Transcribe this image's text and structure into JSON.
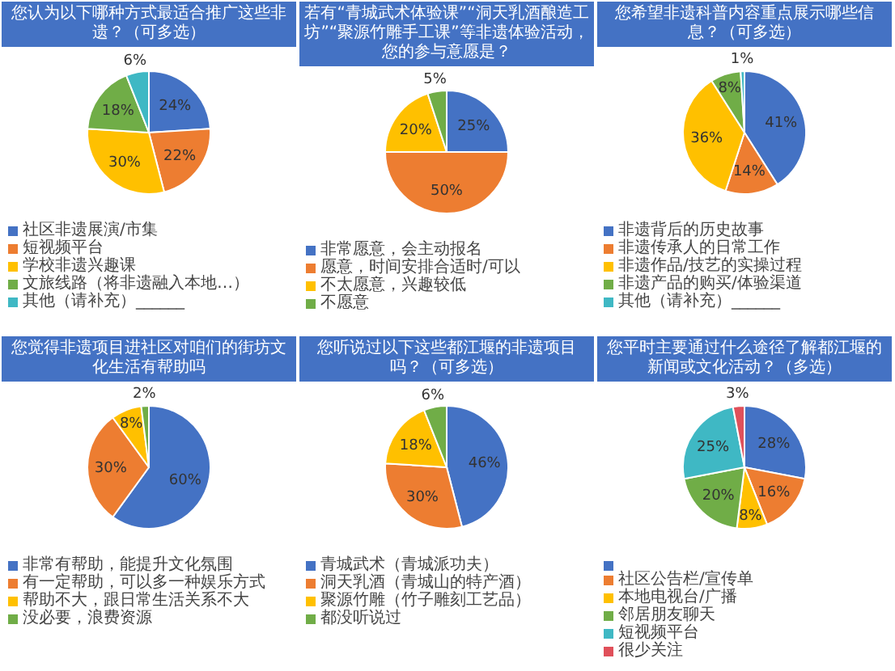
{
  "chart_data": [
    {
      "type": "pie",
      "title": "您认为以下哪种方式最适合推广这些非遗？（可多选）",
      "legend": "bottom",
      "categories": [
        "社区非遗展演/市集",
        "短视频平台",
        "学校非遗兴趣课",
        "文旅线路（将非遗融入本地…）",
        "其他（请补充）______"
      ],
      "values": [
        24,
        22,
        30,
        18,
        6
      ],
      "value_labels": [
        "24%",
        "22%",
        "30%",
        "18%",
        "6%"
      ],
      "colors": [
        "#4472c4",
        "#ed7d31",
        "#ffc000",
        "#70ad47",
        "#3fb8c4"
      ]
    },
    {
      "type": "pie",
      "title": "若有“青城武术体验课”“洞天乳酒酿造工坊”“聚源竹雕手工课”等非遗体验活动，您的参与意愿是？",
      "legend": "bottom",
      "categories": [
        "非常愿意，会主动报名",
        "愿意，时间安排合适时/可以",
        "不太愿意，兴趣较低",
        "不愿意"
      ],
      "values": [
        25,
        50,
        20,
        5
      ],
      "value_labels": [
        "25%",
        "50%",
        "20%",
        "5%"
      ],
      "colors": [
        "#4472c4",
        "#ed7d31",
        "#ffc000",
        "#70ad47"
      ]
    },
    {
      "type": "pie",
      "title": "您希望非遗科普内容重点展示哪些信息？（可多选）",
      "legend": "bottom",
      "categories": [
        "非遗背后的历史故事",
        "非遗传承人的日常工作",
        "非遗作品/技艺的实操过程",
        "非遗产品的购买/体验渠道",
        "其他（请补充）______"
      ],
      "values": [
        41,
        14,
        36,
        8,
        1
      ],
      "value_labels": [
        "41%",
        "14%",
        "36%",
        "8%",
        "1%"
      ],
      "colors": [
        "#4472c4",
        "#ed7d31",
        "#ffc000",
        "#70ad47",
        "#3fb8c4"
      ]
    },
    {
      "type": "pie",
      "title": "您觉得非遗项目进社区对咱们的街坊文化生活有帮助吗",
      "legend": "bottom",
      "categories": [
        "非常有帮助，能提升文化氛围",
        "有一定帮助，可以多一种娱乐方式",
        "帮助不大，跟日常生活关系不大",
        "没必要，浪费资源"
      ],
      "values": [
        60,
        30,
        8,
        2
      ],
      "value_labels": [
        "60%",
        "30%",
        "8%",
        "2%"
      ],
      "colors": [
        "#4472c4",
        "#ed7d31",
        "#ffc000",
        "#70ad47"
      ]
    },
    {
      "type": "pie",
      "title": "您听说过以下这些都江堰的非遗项目吗？（可多选）",
      "legend": "bottom",
      "categories": [
        "青城武术（青城派功夫）",
        "洞天乳酒（青城山的特产酒）",
        "聚源竹雕（竹子雕刻工艺品）",
        "都没听说过"
      ],
      "values": [
        46,
        30,
        18,
        6
      ],
      "value_labels": [
        "46%",
        "30%",
        "18%",
        "6%"
      ],
      "colors": [
        "#4472c4",
        "#ed7d31",
        "#ffc000",
        "#70ad47"
      ]
    },
    {
      "type": "pie",
      "title": "您平时主要通过什么途径了解都江堰的新闻或文化活动？（多选）",
      "legend": "bottom",
      "categories": [
        null,
        "社区公告栏/宣传单",
        "本地电视台/广播",
        "邻居朋友聊天",
        "短视频平台",
        "很少关注"
      ],
      "values": [
        28,
        16,
        8,
        20,
        25,
        3
      ],
      "value_labels": [
        "28%",
        "16%",
        "8%",
        "20%",
        "25%",
        "3%"
      ],
      "colors": [
        "#4472c4",
        "#ed7d31",
        "#ffc000",
        "#70ad47",
        "#3fb8c4",
        "#e0505a"
      ]
    }
  ]
}
